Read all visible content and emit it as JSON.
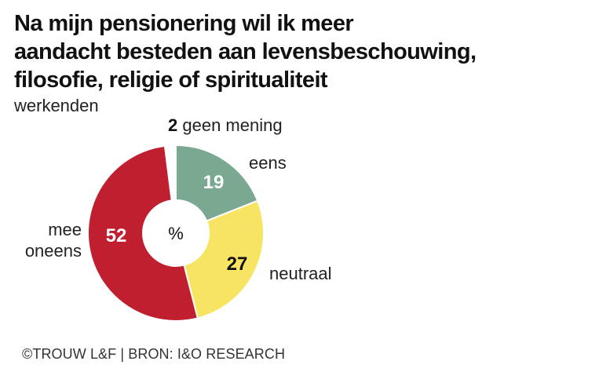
{
  "title_lines": [
    "Na mijn pensionering wil ik meer",
    "aandacht besteden aan levensbeschouwing,",
    "filosofie, religie of spiritualiteit"
  ],
  "subtitle": "werkenden",
  "footer": "©TROUW L&F | BRON: I&O RESEARCH",
  "chart_data": {
    "type": "pie",
    "variant": "donut",
    "center_label": "%",
    "unit": "%",
    "slices": [
      {
        "label": "eens",
        "value": 19,
        "color": "#7ba891",
        "value_color": "#ffffff"
      },
      {
        "label": "neutraal",
        "value": 27,
        "color": "#f7e463",
        "value_color": "#111111"
      },
      {
        "label": "mee oneens",
        "value": 52,
        "color": "#bf1f2f",
        "value_color": "#ffffff"
      },
      {
        "label": "geen mening",
        "value": 2,
        "color": "#ffffff",
        "value_color": "#111111"
      }
    ]
  }
}
